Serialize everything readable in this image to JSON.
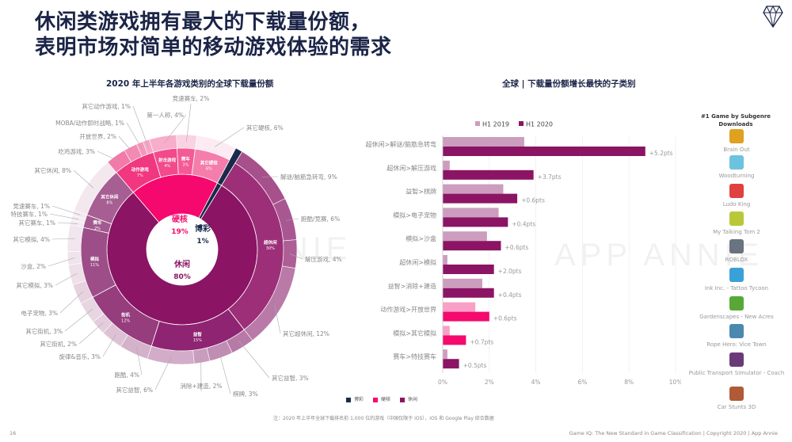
{
  "title": {
    "line1": "休闲类游戏拥有最大的下载量份额，",
    "line2": "表明市场对简单的移动游戏体验的需求"
  },
  "watermark": "APP ANNIE",
  "chart_data": [
    {
      "type": "sunburst",
      "title": "2020 年上半年各游戏类别的全球下载量份额",
      "genres": [
        {
          "name": "休闲",
          "value": 80,
          "label": "80%",
          "color": "#8B1464",
          "subs": [
            {
              "name": "超休闲",
              "value": 30,
              "label": "30%",
              "color": "#9C2F78",
              "leaves": [
                {
                  "name": "解谜/脑筋急转弯",
                  "value": 9,
                  "label": "解谜/脑筋急转弯, 9%",
                  "color": "#A6508C"
                },
                {
                  "name": "跑酷/竞赛",
                  "value": 6,
                  "label": "跑酷/竞赛, 6%",
                  "color": "#A95792"
                },
                {
                  "name": "解压游戏",
                  "value": 4,
                  "label": "解压游戏, 4%",
                  "color": "#AD5E95"
                },
                {
                  "name": "其它超休闲",
                  "value": 12,
                  "label": "其它超休闲, 12%",
                  "color": "#B97AA8"
                }
              ]
            },
            {
              "name": "益智",
              "value": 15,
              "label": "15%",
              "color": "#8E2472",
              "leaves": [
                {
                  "name": "其它益智",
                  "value": 3,
                  "label": "其它益智, 3%",
                  "color": "#B77AA6"
                },
                {
                  "name": "棋牌",
                  "value": 3,
                  "label": "棋牌, 3%",
                  "color": "#C08DB3"
                },
                {
                  "name": "消除+建造",
                  "value": 2,
                  "label": "消除+建造, 2%",
                  "color": "#C99DBD"
                },
                {
                  "name": "其它益智",
                  "value": 6,
                  "label": "其它益智, 6%",
                  "color": "#D2ACC8"
                }
              ]
            },
            {
              "name": "街机",
              "value": 12,
              "label": "12%",
              "color": "#963D7E",
              "leaves": [
                {
                  "name": "跑酷",
                  "value": 4,
                  "label": "跑酷, 4%",
                  "color": "#D4B2CA"
                },
                {
                  "name": "旋律&音乐",
                  "value": 3,
                  "label": "旋律&音乐, 3%",
                  "color": "#DDC2D5"
                },
                {
                  "name": "其它街机",
                  "value": 2,
                  "label": "其它街机, 2%",
                  "color": "#E3CCDC"
                },
                {
                  "name": "其它街机",
                  "value": 3,
                  "label": "其它街机, 3%",
                  "color": "#E8D5E2"
                }
              ]
            },
            {
              "name": "模拟",
              "value": 11,
              "label": "11%",
              "color": "#9D4E88",
              "leaves": [
                {
                  "name": "电子宠物",
                  "value": 3,
                  "label": "电子宠物, 3%",
                  "color": "#E7D3E0"
                },
                {
                  "name": "其它模拟",
                  "value": 3,
                  "label": "其它模拟, 3%",
                  "color": "#EEDFE8"
                },
                {
                  "name": "沙盒",
                  "value": 2,
                  "label": "沙盒, 2%",
                  "color": "#F0E4EC"
                },
                {
                  "name": "其它模拟",
                  "value": 4,
                  "label": "其它模拟, 4%",
                  "color": "#F1E6ED"
                }
              ]
            },
            {
              "name": "赛车",
              "value": 2,
              "label": "2%",
              "color": "#A35A90",
              "leaves": [
                {
                  "name": "其它赛车",
                  "value": 1,
                  "label": "其它赛车, 1%",
                  "color": "#F3EAF0"
                },
                {
                  "name": "特技赛车",
                  "value": 1,
                  "label": "特技赛车, 1%",
                  "color": "#F4ECF1"
                },
                {
                  "name": "竞速赛车",
                  "value": 1,
                  "label": "竞速赛车, 1%",
                  "color": "#F3EAF0"
                }
              ]
            },
            {
              "name": "其它休闲",
              "value": 8,
              "label": "8%",
              "color": "#A65E93",
              "leaves": [
                {
                  "name": "其它休闲",
                  "value": 8,
                  "label": "其它休闲, 8%",
                  "color": "#F2E8EE"
                }
              ]
            }
          ]
        },
        {
          "name": "硬核",
          "value": 19,
          "label": "19%",
          "color": "#F5096E",
          "subs": [
            {
              "name": "动作游戏",
              "value": 7,
              "label": "7%",
              "color": "#F0377F",
              "leaves": [
                {
                  "name": "吃鸡游戏",
                  "value": 3,
                  "label": "吃鸡游戏, 3%",
                  "color": "#F27AA8"
                },
                {
                  "name": "开放世界",
                  "value": 2,
                  "label": "开放世界, 2%",
                  "color": "#F48AB3"
                },
                {
                  "name": "MOBA/动作即时战略",
                  "value": 1,
                  "label": "MOBA/动作即时战略, 1%",
                  "color": "#F596BB"
                },
                {
                  "name": "其它动作游戏",
                  "value": 1,
                  "label": "其它动作游戏, 1%",
                  "color": "#F7A5C5"
                }
              ]
            },
            {
              "name": "射击游戏",
              "value": 4,
              "label": "4%",
              "color": "#F24A8A",
              "leaves": [
                {
                  "name": "第一人称",
                  "value": 4,
                  "label": "第一人称, 4%",
                  "color": "#F8AECB"
                }
              ]
            },
            {
              "name": "赛车",
              "value": 3,
              "label": "3%",
              "color": "#F45A95",
              "leaves": [
                {
                  "name": "竞速赛车",
                  "value": 2,
                  "label": "竞速赛车, 2%",
                  "color": "#FAD2E2"
                }
              ]
            },
            {
              "name": "其它硬核",
              "value": 6,
              "label": "6%",
              "color": "#F57DAB",
              "leaves": [
                {
                  "name": "其它硬核",
                  "value": 6,
                  "label": "其它硬核, 6%",
                  "color": "#FCEBF2"
                }
              ]
            }
          ]
        },
        {
          "name": "博彩",
          "value": 1,
          "label": "1%",
          "color": "#1B2A4A",
          "subs": []
        }
      ],
      "legend": [
        {
          "name": "博彩",
          "color": "#1B2A4A"
        },
        {
          "name": "硬核",
          "color": "#F5096E"
        },
        {
          "name": "休闲",
          "color": "#8B1464"
        }
      ]
    },
    {
      "type": "bar",
      "orientation": "horizontal",
      "title": "全球 | 下载量份额增长最快的子类别",
      "categories": [
        "超休闲>解谜/脑筋急转弯",
        "超休闲>解压游戏",
        "益智>棋牌",
        "模拟>电子宠物",
        "模拟>沙盒",
        "超休闲>模拟",
        "益智>消除+建造",
        "动作游戏>开放世界",
        "模拟>其它模拟",
        "赛车>特技赛车"
      ],
      "series": [
        {
          "name": "H1 2019",
          "values": [
            3.5,
            0.3,
            2.6,
            2.4,
            1.9,
            0.2,
            1.7,
            1.4,
            0.3,
            0.2
          ],
          "color": "#CC9DBF"
        },
        {
          "name": "H1 2020",
          "values": [
            8.7,
            3.9,
            3.2,
            2.8,
            2.5,
            2.2,
            2.2,
            2.0,
            1.0,
            0.7
          ],
          "color": "#8B1464"
        }
      ],
      "highlight_categories": [
        "动作游戏>开放世界",
        "模拟>其它模拟"
      ],
      "highlight_colors": {
        "H1 2019": "#F9A0C6",
        "H1 2020": "#F50A6E"
      },
      "data_labels": [
        "+5.2pts",
        "+3.7pts",
        "+0.6pts",
        "+0.4pts",
        "+0.6pts",
        "+2.0pts",
        "+0.4pts",
        "+0.6pts",
        "+0.7pts",
        "+0.5pts"
      ],
      "xlim": [
        0,
        10
      ],
      "xticks": [
        "0%",
        "2%",
        "4%",
        "6%",
        "8%",
        "10%"
      ],
      "grid": true,
      "legend_position": "top"
    }
  ],
  "games": {
    "title": "#1 Game by Subgenre Downloads",
    "items": [
      {
        "name": "Brain Out",
        "color": "#E0A020"
      },
      {
        "name": "Woodturning",
        "color": "#6CC3E0"
      },
      {
        "name": "Ludo King",
        "color": "#E04040"
      },
      {
        "name": "My Talking Tom 2",
        "color": "#B8C838"
      },
      {
        "name": "ROBLOX",
        "color": "#6A7480"
      },
      {
        "name": "Ink Inc. - Tattoo Tycoon",
        "color": "#3AA0D8"
      },
      {
        "name": "Gardenscapes - New Acres",
        "color": "#58A838"
      },
      {
        "name": "Rope Hero: Vice Town",
        "color": "#4A88B0"
      },
      {
        "name": "Public Transport Simulator - Coach",
        "color": "#6A3A78"
      },
      {
        "name": "Car Stunts 3D",
        "color": "#B05A38"
      }
    ]
  },
  "note": "注：2020 年上半年全球下载排名前 1,000 位的游戏（中国仅限于 iOS），iOS 和 Google Play 综合数据",
  "footer": "Game IQ: The New Standard in Game Classification  |  Copyright 2020  |  App Annie",
  "page_number": "16"
}
